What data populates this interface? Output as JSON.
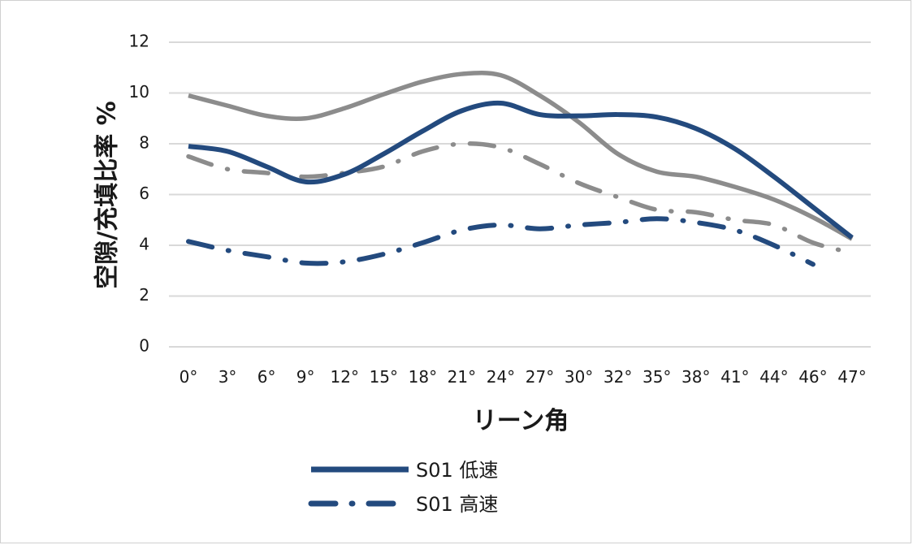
{
  "chart_data": {
    "type": "line",
    "title": "",
    "xlabel": "リーン角",
    "ylabel": "空隙/充填比率 %",
    "ylim": [
      0,
      12
    ],
    "yticks": [
      0,
      2,
      4,
      6,
      8,
      10,
      12
    ],
    "grid": true,
    "categories": [
      "0°",
      "3°",
      "6°",
      "9°",
      "12°",
      "15°",
      "18°",
      "21°",
      "24°",
      "27°",
      "30°",
      "32°",
      "35°",
      "38°",
      "41°",
      "44°",
      "46°",
      "47°"
    ],
    "series": [
      {
        "name": "S01 低速",
        "color": "#234a7e",
        "style": "solid",
        "in_legend": true,
        "values": [
          7.9,
          7.7,
          7.1,
          6.5,
          6.8,
          7.6,
          8.5,
          9.3,
          9.6,
          9.15,
          9.1,
          9.15,
          9.05,
          8.6,
          7.8,
          6.7,
          5.5,
          4.3
        ]
      },
      {
        "name": "S01 高速",
        "color": "#234a7e",
        "style": "dash-dot",
        "in_legend": true,
        "values": [
          4.15,
          3.8,
          3.55,
          3.3,
          3.35,
          3.65,
          4.1,
          4.6,
          4.8,
          4.65,
          4.8,
          4.9,
          5.05,
          4.9,
          4.6,
          4.0,
          3.25,
          null
        ]
      },
      {
        "name": "",
        "color": "#8c8c8c",
        "style": "solid",
        "in_legend": false,
        "values": [
          9.9,
          9.5,
          9.1,
          9.0,
          9.4,
          9.95,
          10.45,
          10.75,
          10.7,
          9.9,
          8.85,
          7.6,
          6.9,
          6.7,
          6.3,
          5.8,
          5.1,
          4.25
        ]
      },
      {
        "name": "",
        "color": "#8c8c8c",
        "style": "dash-dot",
        "in_legend": false,
        "values": [
          7.5,
          7.0,
          6.85,
          6.7,
          6.85,
          7.1,
          7.7,
          8.0,
          7.85,
          7.2,
          6.45,
          5.9,
          5.4,
          5.3,
          5.0,
          4.8,
          4.1,
          3.7
        ]
      }
    ]
  }
}
